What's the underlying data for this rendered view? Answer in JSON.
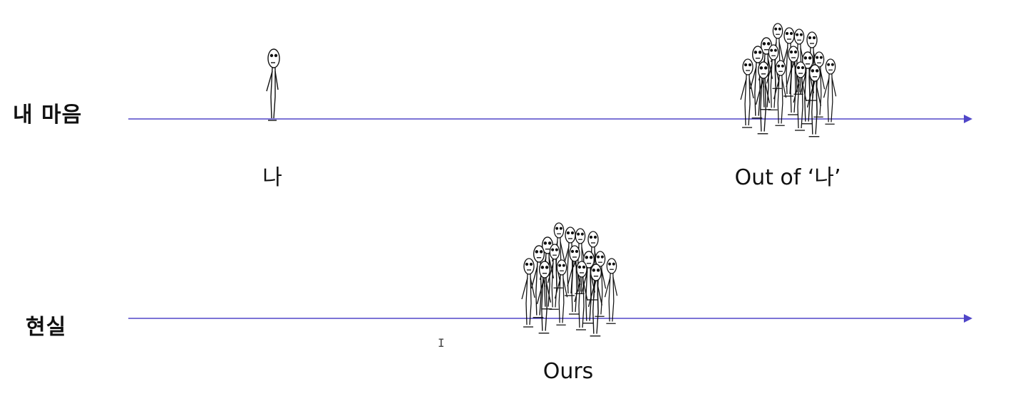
{
  "rows": [
    {
      "label": "내 마음",
      "captions": [
        {
          "id": "me",
          "text": "나"
        },
        {
          "id": "out",
          "text": "Out of ‘나’"
        }
      ]
    },
    {
      "label": "현실",
      "captions": [
        {
          "id": "ours",
          "text": "Ours"
        }
      ]
    }
  ],
  "colors": {
    "axis": "#5046c8",
    "figure": "#111111",
    "text": "#111111"
  },
  "icons": {
    "single": "stick-figure-icon",
    "group": "stick-figure-crowd-icon",
    "cursor": "text-cursor-icon"
  }
}
